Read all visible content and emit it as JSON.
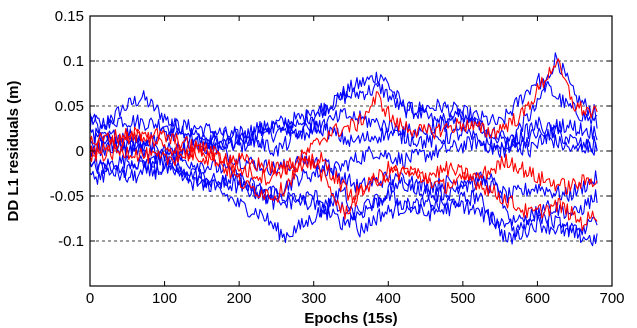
{
  "chart_data": {
    "type": "line",
    "title": "",
    "xlabel": "Epochs (15s)",
    "ylabel": "DD L1 residuals (m)",
    "xlim": [
      0,
      700
    ],
    "ylim": [
      -0.15,
      0.15
    ],
    "xticks": [
      0,
      100,
      200,
      300,
      400,
      500,
      600,
      700
    ],
    "yticks": [
      0.15,
      0.1,
      0.05,
      0,
      -0.05,
      -0.1
    ],
    "ytick_labels": [
      "0.15",
      "0.1",
      "0.05",
      "0",
      "-0.05",
      "-0.1"
    ],
    "grid": "dashed horizontal at y ticks",
    "legend": "none",
    "n_epochs": 680,
    "series": [
      {
        "color": "#0000ff",
        "anchors": [
          [
            0,
            0.04
          ],
          [
            15,
            0.02
          ],
          [
            40,
            0.045
          ],
          [
            70,
            0.06
          ],
          [
            110,
            0.03
          ],
          [
            160,
            0.01
          ],
          [
            200,
            0.005
          ],
          [
            250,
            0.02
          ],
          [
            300,
            0.04
          ],
          [
            350,
            0.07
          ],
          [
            390,
            0.085
          ],
          [
            420,
            0.05
          ],
          [
            470,
            0.03
          ],
          [
            520,
            0.03
          ],
          [
            560,
            0.01
          ],
          [
            600,
            0.05
          ],
          [
            625,
            0.105
          ],
          [
            650,
            0.06
          ],
          [
            680,
            0.04
          ]
        ]
      },
      {
        "color": "#0000ff",
        "anchors": [
          [
            0,
            0.03
          ],
          [
            40,
            0.035
          ],
          [
            90,
            0.03
          ],
          [
            150,
            0.025
          ],
          [
            200,
            0.015
          ],
          [
            250,
            0.03
          ],
          [
            300,
            0.04
          ],
          [
            340,
            0.06
          ],
          [
            390,
            0.07
          ],
          [
            420,
            0.045
          ],
          [
            470,
            0.05
          ],
          [
            510,
            0.04
          ],
          [
            550,
            0.03
          ],
          [
            600,
            0.08
          ],
          [
            640,
            0.05
          ],
          [
            680,
            0.03
          ]
        ]
      },
      {
        "color": "#0000ff",
        "anchors": [
          [
            0,
            0.01
          ],
          [
            50,
            0.02
          ],
          [
            100,
            0.0
          ],
          [
            150,
            0.01
          ],
          [
            200,
            -0.01
          ],
          [
            250,
            -0.02
          ],
          [
            290,
            -0.01
          ],
          [
            330,
            -0.02
          ],
          [
            380,
            0.0
          ],
          [
            420,
            -0.01
          ],
          [
            470,
            0.0
          ],
          [
            520,
            0.01
          ],
          [
            560,
            0.0
          ],
          [
            600,
            0.02
          ],
          [
            650,
            0.0
          ],
          [
            680,
            0.01
          ]
        ]
      },
      {
        "color": "#0000ff",
        "anchors": [
          [
            0,
            -0.02
          ],
          [
            50,
            -0.01
          ],
          [
            100,
            -0.02
          ],
          [
            150,
            -0.03
          ],
          [
            200,
            -0.04
          ],
          [
            240,
            -0.05
          ],
          [
            280,
            -0.03
          ],
          [
            320,
            -0.02
          ],
          [
            360,
            -0.04
          ],
          [
            400,
            -0.03
          ],
          [
            440,
            -0.04
          ],
          [
            480,
            -0.035
          ],
          [
            520,
            -0.03
          ],
          [
            560,
            -0.05
          ],
          [
            600,
            -0.04
          ],
          [
            640,
            -0.05
          ],
          [
            680,
            -0.03
          ]
        ]
      },
      {
        "color": "#0000ff",
        "anchors": [
          [
            0,
            -0.03
          ],
          [
            50,
            -0.02
          ],
          [
            100,
            -0.01
          ],
          [
            150,
            -0.03
          ],
          [
            200,
            -0.06
          ],
          [
            230,
            -0.07
          ],
          [
            260,
            -0.095
          ],
          [
            290,
            -0.08
          ],
          [
            320,
            -0.06
          ],
          [
            340,
            -0.04
          ],
          [
            360,
            -0.09
          ],
          [
            390,
            -0.07
          ],
          [
            430,
            -0.06
          ],
          [
            470,
            -0.06
          ],
          [
            520,
            -0.05
          ],
          [
            560,
            -0.1
          ],
          [
            600,
            -0.08
          ],
          [
            640,
            -0.09
          ],
          [
            680,
            -0.1
          ]
        ]
      },
      {
        "color": "#0000ff",
        "anchors": [
          [
            0,
            0.0
          ],
          [
            60,
            0.01
          ],
          [
            120,
            -0.01
          ],
          [
            180,
            -0.02
          ],
          [
            220,
            -0.04
          ],
          [
            260,
            -0.05
          ],
          [
            300,
            -0.06
          ],
          [
            340,
            -0.08
          ],
          [
            380,
            -0.06
          ],
          [
            420,
            -0.03
          ],
          [
            460,
            -0.05
          ],
          [
            500,
            -0.04
          ],
          [
            540,
            -0.03
          ],
          [
            570,
            -0.09
          ],
          [
            610,
            -0.06
          ],
          [
            650,
            -0.07
          ],
          [
            680,
            -0.05
          ]
        ]
      },
      {
        "color": "#0000ff",
        "anchors": [
          [
            0,
            0.02
          ],
          [
            50,
            0.0
          ],
          [
            100,
            0.02
          ],
          [
            150,
            0.01
          ],
          [
            200,
            0.02
          ],
          [
            250,
            0.0
          ],
          [
            300,
            0.03
          ],
          [
            350,
            0.01
          ],
          [
            400,
            0.02
          ],
          [
            450,
            0.01
          ],
          [
            500,
            0.02
          ],
          [
            550,
            0.0
          ],
          [
            600,
            0.03
          ],
          [
            650,
            0.01
          ],
          [
            680,
            0.0
          ]
        ]
      },
      {
        "color": "#0000ff",
        "anchors": [
          [
            0,
            -0.01
          ],
          [
            50,
            -0.03
          ],
          [
            100,
            -0.02
          ],
          [
            150,
            -0.04
          ],
          [
            200,
            -0.03
          ],
          [
            250,
            -0.06
          ],
          [
            300,
            -0.05
          ],
          [
            350,
            -0.07
          ],
          [
            400,
            -0.05
          ],
          [
            450,
            -0.07
          ],
          [
            500,
            -0.06
          ],
          [
            550,
            -0.08
          ],
          [
            600,
            -0.07
          ],
          [
            650,
            -0.09
          ],
          [
            680,
            -0.08
          ]
        ]
      },
      {
        "color": "#0000ff",
        "anchors": [
          [
            0,
            0.0
          ],
          [
            40,
            0.01
          ],
          [
            90,
            -0.01
          ],
          [
            140,
            0.0
          ],
          [
            190,
            0.01
          ],
          [
            240,
            0.03
          ],
          [
            290,
            0.02
          ],
          [
            340,
            0.04
          ],
          [
            390,
            0.03
          ],
          [
            440,
            0.02
          ],
          [
            490,
            0.04
          ],
          [
            540,
            0.02
          ],
          [
            590,
            0.0
          ],
          [
            630,
            0.03
          ],
          [
            680,
            0.02
          ]
        ]
      },
      {
        "color": "#ff0000",
        "anchors": [
          [
            0,
            0.0
          ],
          [
            40,
            0.01
          ],
          [
            80,
            0.02
          ],
          [
            120,
            0.01
          ],
          [
            160,
            0.0
          ],
          [
            200,
            -0.02
          ],
          [
            240,
            -0.03
          ],
          [
            280,
            -0.01
          ],
          [
            320,
            0.02
          ],
          [
            360,
            0.03
          ],
          [
            385,
            0.06
          ],
          [
            410,
            0.03
          ],
          [
            450,
            0.02
          ],
          [
            500,
            0.03
          ],
          [
            540,
            0.02
          ],
          [
            580,
            0.04
          ],
          [
            625,
            0.1
          ],
          [
            650,
            0.05
          ],
          [
            680,
            0.04
          ]
        ]
      },
      {
        "color": "#ff0000",
        "anchors": [
          [
            0,
            -0.005
          ],
          [
            50,
            0.0
          ],
          [
            100,
            -0.01
          ],
          [
            150,
            0.0
          ],
          [
            200,
            -0.01
          ],
          [
            250,
            -0.02
          ],
          [
            300,
            -0.01
          ],
          [
            340,
            -0.07
          ],
          [
            370,
            -0.04
          ],
          [
            400,
            -0.02
          ],
          [
            440,
            -0.03
          ],
          [
            480,
            -0.02
          ],
          [
            520,
            -0.03
          ],
          [
            560,
            -0.01
          ],
          [
            600,
            -0.03
          ],
          [
            640,
            -0.04
          ],
          [
            680,
            -0.03
          ]
        ]
      },
      {
        "color": "#ff0000",
        "anchors": [
          [
            0,
            0.01
          ],
          [
            60,
            0.02
          ],
          [
            120,
            0.0
          ],
          [
            170,
            -0.01
          ],
          [
            210,
            -0.04
          ],
          [
            250,
            -0.05
          ],
          [
            280,
            -0.02
          ],
          [
            310,
            -0.01
          ],
          [
            350,
            -0.05
          ],
          [
            390,
            -0.03
          ],
          [
            430,
            -0.02
          ],
          [
            470,
            -0.04
          ],
          [
            510,
            -0.03
          ],
          [
            550,
            -0.05
          ],
          [
            590,
            -0.07
          ],
          [
            630,
            -0.06
          ],
          [
            660,
            -0.08
          ],
          [
            680,
            -0.07
          ]
        ]
      }
    ]
  }
}
